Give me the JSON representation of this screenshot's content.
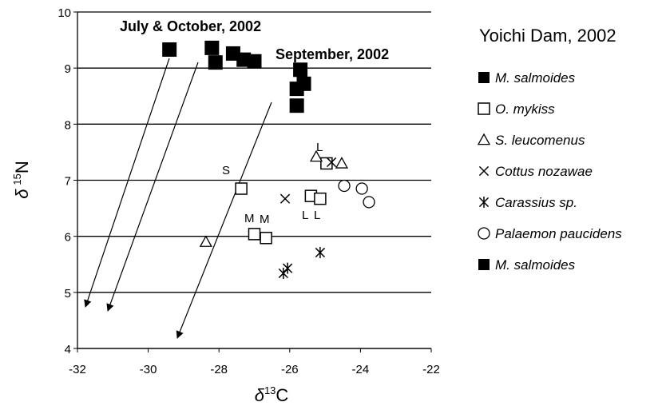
{
  "chart_data": {
    "type": "scatter",
    "title": "Yoichi Dam, 2002",
    "xlabel": {
      "symbol": "δ",
      "sup": "13",
      "text": "C"
    },
    "ylabel": {
      "symbol": "δ",
      "sup": "15",
      "text": "N"
    },
    "xlim": [
      -32,
      -22
    ],
    "ylim": [
      4,
      10
    ],
    "xticks": [
      -32,
      -30,
      -28,
      -26,
      -24,
      -22
    ],
    "yticks": [
      4,
      5,
      6,
      7,
      8,
      9,
      10
    ],
    "grid": true,
    "annotations": [
      "July & October, 2002",
      "September, 2002",
      "S",
      "M",
      "M",
      "L",
      "L",
      "L"
    ],
    "series": [
      {
        "name": "M. salmoides",
        "marker": "filled-square",
        "color": "#000000",
        "x": [
          -25.7,
          -25.6,
          -25.8,
          -25.8
        ],
        "values": [
          8.97,
          8.72,
          8.63,
          8.33
        ]
      },
      {
        "name": "O. mykiss",
        "marker": "open-square",
        "color": "#000000",
        "x": [
          -27.37,
          -27.0,
          -26.67,
          -25.4,
          -25.14,
          -24.96
        ],
        "values": [
          6.85,
          6.04,
          5.97,
          6.72,
          6.67,
          7.3
        ]
      },
      {
        "name": "S. leucomenus",
        "marker": "triangle",
        "color": "#000000",
        "x": [
          -28.37,
          -25.25,
          -24.53
        ],
        "values": [
          5.9,
          7.42,
          7.3
        ]
      },
      {
        "name": "Cottus nozawae",
        "marker": "cross",
        "color": "#000000",
        "x": [
          -26.13,
          -24.82
        ],
        "values": [
          6.67,
          7.32
        ]
      },
      {
        "name": "Carassius sp.",
        "marker": "asterisk",
        "color": "#000000",
        "x": [
          -26.18,
          -26.06,
          -25.14
        ],
        "values": [
          5.34,
          5.43,
          5.71
        ]
      },
      {
        "name": "Palaemon paucidens",
        "marker": "circle",
        "color": "#000000",
        "x": [
          -24.46,
          -23.96,
          -23.76
        ],
        "values": [
          6.9,
          6.85,
          6.61
        ]
      },
      {
        "name": "M. salmoides",
        "marker": "filled-square",
        "color": "#000000",
        "x": [
          -29.4,
          -28.2,
          -28.1,
          -27.6,
          -27.3,
          -27.0
        ],
        "values": [
          9.33,
          9.36,
          9.1,
          9.26,
          9.15,
          9.12
        ]
      }
    ]
  }
}
